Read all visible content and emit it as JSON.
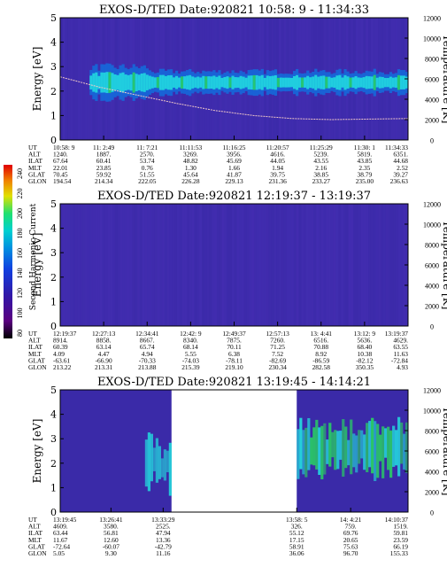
{
  "colors": {
    "plot_bg": "#3a2aa8",
    "gap_bg": "#ffffff",
    "band_strong": "#22e0e0",
    "band_green": "#28d860",
    "temperature_curve": "#f0c8c8",
    "colorscale": [
      "#000000",
      "#5a0080",
      "#3018a8",
      "#1040e0",
      "#0090e0",
      "#00d0d0",
      "#20e070",
      "#e0e000",
      "#f08000",
      "#e00000"
    ]
  },
  "colorbar": {
    "label": "Second Harmonic Current",
    "ticks": [
      "80",
      "100",
      "120",
      "140",
      "160",
      "180",
      "200",
      "220",
      "240"
    ]
  },
  "row_labels": [
    "UT",
    "ALT",
    "ILAT",
    "MLT",
    "GLAT",
    "GLON"
  ],
  "chart_data": [
    {
      "type": "heatmap",
      "title": "EXOS-D/TED   Date:920821  10:58: 9 - 11:34:33",
      "ylabel": "Energy [eV]",
      "y2label": "Temperature [K]",
      "ylim": [
        0,
        5
      ],
      "y2lim": [
        0,
        12000
      ],
      "yticks": [
        "0",
        "1",
        "2",
        "3",
        "4",
        "5"
      ],
      "y2ticks": [
        "0",
        "2000",
        "4000",
        "6000",
        "8000",
        "10000",
        "12000"
      ],
      "band": {
        "energy_center": 2.35,
        "energy_width": 0.9,
        "strong": true
      },
      "temperature_curve": [
        6200,
        5200,
        4400,
        3600,
        2900,
        2400,
        2100,
        2000,
        2050,
        2100
      ],
      "columns": [
        {
          "UT": "10:58: 9",
          "ALT": "1240.",
          "ILAT": "67.64",
          "MLT": "22.01",
          "GLAT": "70.45",
          "GLON": "194.54"
        },
        {
          "UT": "11: 2:49",
          "ALT": "1887.",
          "ILAT": "60.41",
          "MLT": "23.85",
          "GLAT": "59.92",
          "GLON": "214.34"
        },
        {
          "UT": "11: 7:21",
          "ALT": "2570.",
          "ILAT": "53.74",
          "MLT": "0.76",
          "GLAT": "51.55",
          "GLON": "222.05"
        },
        {
          "UT": "11:11:53",
          "ALT": "3269.",
          "ILAT": "48.82",
          "MLT": "1.30",
          "GLAT": "45.64",
          "GLON": "226.28"
        },
        {
          "UT": "11:16:25",
          "ALT": "3956.",
          "ILAT": "45.69",
          "MLT": "1.66",
          "GLAT": "41.87",
          "GLON": "229.13"
        },
        {
          "UT": "11:20:57",
          "ALT": "4616.",
          "ILAT": "44.05",
          "MLT": "1.94",
          "GLAT": "39.75",
          "GLON": "231.36"
        },
        {
          "UT": "11:25:29",
          "ALT": "5239.",
          "ILAT": "43.55",
          "MLT": "2.16",
          "GLAT": "38.85",
          "GLON": "233.27"
        },
        {
          "UT": "11:30: 1",
          "ALT": "5819.",
          "ILAT": "43.85",
          "MLT": "2.35",
          "GLAT": "38.79",
          "GLON": "235.00"
        },
        {
          "UT": "11:34:33",
          "ALT": "6351.",
          "ILAT": "44.68",
          "MLT": "2.52",
          "GLAT": "39.27",
          "GLON": "236.63"
        }
      ]
    },
    {
      "type": "heatmap",
      "title": "EXOS-D/TED   Date:920821  12:19:37 - 13:19:37",
      "ylabel": "Energy [eV]",
      "y2label": "Temperature [K]",
      "ylim": [
        0,
        5
      ],
      "y2lim": [
        0,
        12000
      ],
      "yticks": [
        "0",
        "1",
        "2",
        "3",
        "4",
        "5"
      ],
      "y2ticks": [
        "0",
        "2000",
        "4000",
        "6000",
        "8000",
        "10000",
        "12000"
      ],
      "band": null,
      "temperature_curve": [],
      "columns": [
        {
          "UT": "12:19:37",
          "ALT": "8914.",
          "ILAT": "60.39",
          "MLT": "4.09",
          "GLAT": "-63.61",
          "GLON": "213.22"
        },
        {
          "UT": "12:27:13",
          "ALT": "8858.",
          "ILAT": "63.14",
          "MLT": "4.47",
          "GLAT": "-66.90",
          "GLON": "213.31"
        },
        {
          "UT": "12:34:41",
          "ALT": "8667.",
          "ILAT": "65.74",
          "MLT": "4.94",
          "GLAT": "-70.33",
          "GLON": "213.88"
        },
        {
          "UT": "12:42: 9",
          "ALT": "8340.",
          "ILAT": "68.14",
          "MLT": "5.55",
          "GLAT": "-74.03",
          "GLON": "215.39"
        },
        {
          "UT": "12:49:37",
          "ALT": "7875.",
          "ILAT": "70.11",
          "MLT": "6.38",
          "GLAT": "-78.11",
          "GLON": "219.10"
        },
        {
          "UT": "12:57:13",
          "ALT": "7260.",
          "ILAT": "71.25",
          "MLT": "7.52",
          "GLAT": "-82.69",
          "GLON": "230.34"
        },
        {
          "UT": "13: 4:41",
          "ALT": "6516.",
          "ILAT": "70.88",
          "MLT": "8.92",
          "GLAT": "-86.59",
          "GLON": "282.58"
        },
        {
          "UT": "13:12: 9",
          "ALT": "5636.",
          "ILAT": "68.40",
          "MLT": "10.38",
          "GLAT": "-82.12",
          "GLON": "350.35"
        },
        {
          "UT": "13:19:37",
          "ALT": "4629.",
          "ILAT": "63.55",
          "MLT": "11.63",
          "GLAT": "-72.84",
          "GLON": "4.93"
        }
      ]
    },
    {
      "type": "heatmap",
      "title": "EXOS-D/TED   Date:920821  13:19:45 - 14:14:21",
      "ylabel": "Energy [eV]",
      "y2label": "Temperature [K]",
      "ylim": [
        0,
        5
      ],
      "y2lim": [
        0,
        12000
      ],
      "yticks": [
        "0",
        "1",
        "2",
        "3",
        "4",
        "5"
      ],
      "y2ticks": [
        "0",
        "2000",
        "4000",
        "6000",
        "8000",
        "10000",
        "12000"
      ],
      "segments": [
        {
          "from": 0.0,
          "to": 0.32,
          "band_energy": 2.0,
          "band_start": 0.24
        },
        {
          "from": 0.68,
          "to": 1.0,
          "band_energy": 2.6,
          "band_start": 0.68
        }
      ],
      "columns": [
        {
          "UT": "13:19:45",
          "ALT": "4609.",
          "ILAT": "63.44",
          "MLT": "11.67",
          "GLAT": "-72.64",
          "GLON": "5.05"
        },
        {
          "UT": "13:26:41",
          "ALT": "3580.",
          "ILAT": "56.81",
          "MLT": "12.60",
          "GLAT": "-60.07",
          "GLON": "9.30"
        },
        {
          "UT": "13:33:29",
          "ALT": "2525.",
          "ILAT": "47.94",
          "MLT": "13.36",
          "GLAT": "-42.79",
          "GLON": "11.16"
        },
        {
          "UT": "13:58: 5",
          "ALT": "326.",
          "ILAT": "55.12",
          "MLT": "17.15",
          "GLAT": "58.91",
          "GLON": "36.06"
        },
        {
          "UT": "14: 4:21",
          "ALT": "759.",
          "ILAT": "69.76",
          "MLT": "20.65",
          "GLAT": "75.63",
          "GLON": "96.70"
        },
        {
          "UT": "14:10:37",
          "ALT": "1519.",
          "ILAT": "59.81",
          "MLT": "23.59",
          "GLAT": "66.19",
          "GLON": "155.33"
        }
      ]
    }
  ]
}
